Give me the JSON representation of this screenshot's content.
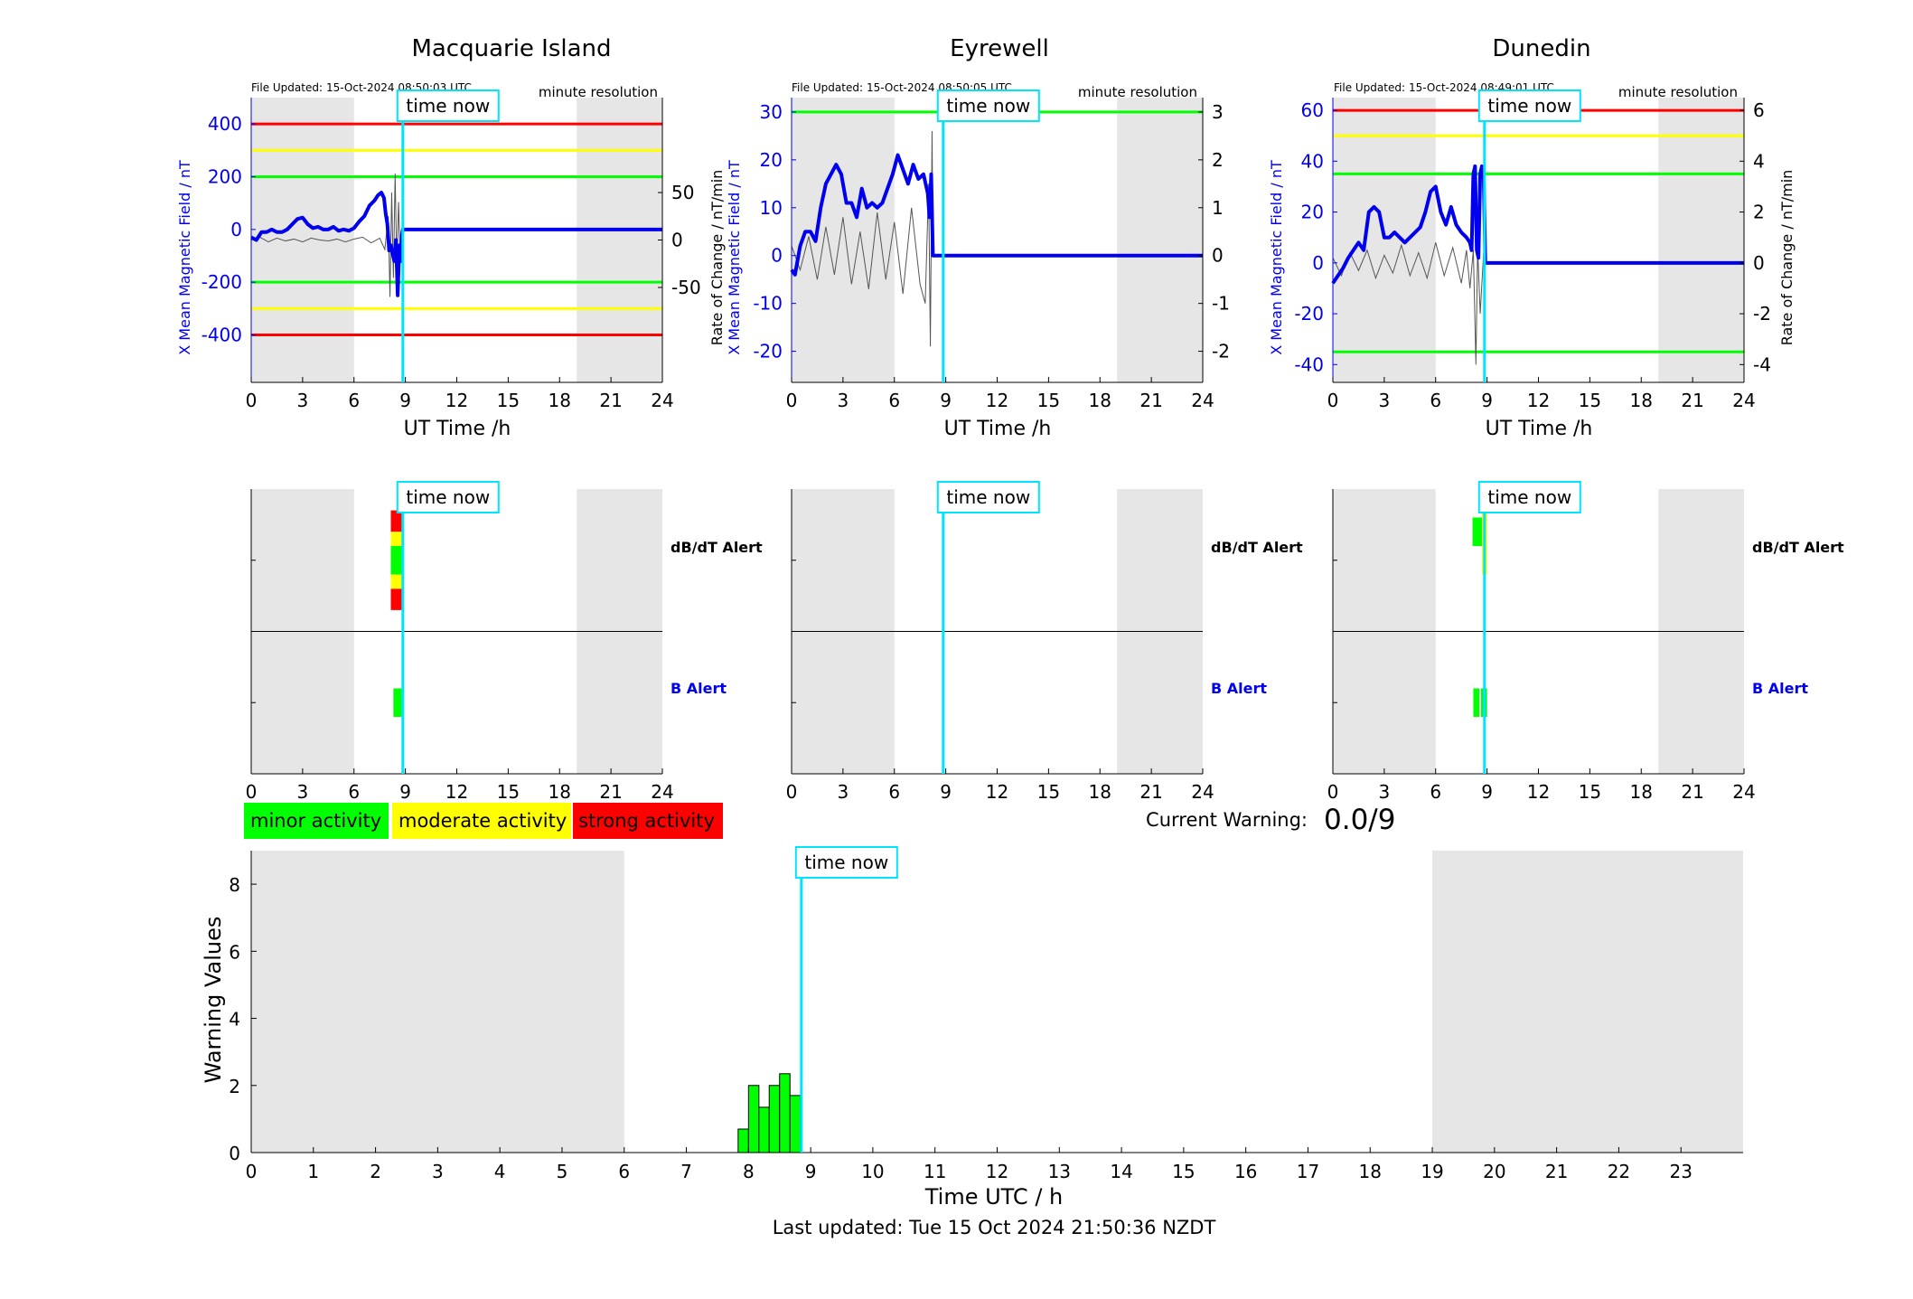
{
  "colors": {
    "blue": "#0000ee",
    "red": "#ff0000",
    "yellow": "#ffff00",
    "green": "#00ff00",
    "cyan": "#00e5ff",
    "shade": "#e6e6e6"
  },
  "common": {
    "time_now_label": "time now",
    "time_now_h": 8.85,
    "file_updated_prefix": "File Updated:",
    "resolution": "minute resolution",
    "ut_xlabel": "UT Time /h",
    "x_ticks": [
      0,
      3,
      6,
      9,
      12,
      15,
      18,
      21,
      24
    ],
    "night_shading": [
      [
        0,
        6
      ],
      [
        19,
        24
      ]
    ]
  },
  "chart_data": [
    {
      "type": "line",
      "station": "Macquarie Island",
      "file_updated": "15-Oct-2024 08:50:03 UTC",
      "ylabel_left": "X Mean Magnetic Field / nT",
      "ylabel_right": "",
      "xlim": [
        0,
        24
      ],
      "ylim_left": [
        -580,
        500
      ],
      "yticks_left": [
        400,
        200,
        0,
        -200,
        -400
      ],
      "ylim_right": [
        -150,
        150
      ],
      "yticks_right": [
        50,
        0,
        -50
      ],
      "thresholds": [
        {
          "value": 400,
          "color": "red"
        },
        {
          "value": -400,
          "color": "red"
        },
        {
          "value": 300,
          "color": "yellow"
        },
        {
          "value": -300,
          "color": "yellow"
        },
        {
          "value": 200,
          "color": "green"
        },
        {
          "value": -200,
          "color": "green"
        }
      ],
      "series": [
        {
          "role": "x_mean",
          "x": [
            0,
            0.3,
            0.6,
            0.9,
            1.2,
            1.5,
            1.8,
            2.1,
            2.4,
            2.7,
            3.0,
            3.3,
            3.6,
            3.9,
            4.2,
            4.5,
            4.8,
            5.1,
            5.4,
            5.7,
            6.0,
            6.3,
            6.6,
            6.9,
            7.2,
            7.4,
            7.6,
            7.75,
            7.85,
            7.95,
            8.05,
            8.15,
            8.25,
            8.35,
            8.45,
            8.55,
            8.65,
            8.75,
            8.8,
            8.85,
            24
          ],
          "y": [
            -30,
            -40,
            -10,
            -10,
            0,
            -10,
            -10,
            0,
            20,
            40,
            45,
            20,
            5,
            10,
            0,
            0,
            10,
            -5,
            0,
            -5,
            5,
            30,
            50,
            90,
            110,
            130,
            140,
            120,
            60,
            20,
            -80,
            -60,
            -90,
            -120,
            -40,
            -250,
            -60,
            -120,
            -20,
            0,
            0
          ]
        },
        {
          "role": "rate_of_change",
          "x": [
            0,
            0.5,
            1,
            1.5,
            2,
            2.5,
            3,
            3.5,
            4,
            4.5,
            5,
            5.5,
            6,
            6.5,
            7,
            7.5,
            7.8,
            8.0,
            8.1,
            8.2,
            8.3,
            8.4,
            8.5,
            8.6,
            8.7,
            8.8
          ],
          "y": [
            0,
            3,
            -2,
            2,
            -1,
            1,
            -2,
            2,
            0,
            -1,
            1,
            -2,
            1,
            3,
            -3,
            2,
            -10,
            25,
            -60,
            50,
            -40,
            70,
            -30,
            40,
            -20,
            5
          ]
        }
      ],
      "panel2": {
        "labels": [
          "dB/dT Alert",
          "B Alert"
        ],
        "dbdt_bars": [
          {
            "x0": 8.15,
            "x1": 8.85,
            "y0": 0.3,
            "y1": 0.6,
            "color": "red"
          },
          {
            "x0": 8.15,
            "x1": 8.85,
            "y0": 0.6,
            "y1": 0.8,
            "color": "yellow"
          },
          {
            "x0": 8.15,
            "x1": 8.85,
            "y0": 0.8,
            "y1": 1.2,
            "color": "green"
          },
          {
            "x0": 8.15,
            "x1": 8.85,
            "y0": 1.2,
            "y1": 1.4,
            "color": "yellow"
          },
          {
            "x0": 8.15,
            "x1": 8.85,
            "y0": 1.4,
            "y1": 1.7,
            "color": "red"
          }
        ],
        "b_bars": [
          {
            "x0": 8.3,
            "x1": 8.8,
            "y0": 0.8,
            "y1": 1.2,
            "color": "green"
          }
        ]
      }
    },
    {
      "type": "line",
      "station": "Eyrewell",
      "file_updated": "15-Oct-2024 08:50:05 UTC",
      "ylabel_left": "X Mean Magnetic Field / nT",
      "ylabel_right": "Rate of Change / nT/min",
      "xlim": [
        0,
        24
      ],
      "ylim_left": [
        -26.5,
        33
      ],
      "yticks_left": [
        30,
        20,
        10,
        0,
        -10,
        -20
      ],
      "ylim_right": [
        -2.65,
        3.3
      ],
      "yticks_right": [
        3,
        2,
        1,
        0,
        -1,
        -2
      ],
      "thresholds": [
        {
          "value": 30,
          "color": "green"
        }
      ],
      "series": [
        {
          "role": "x_mean",
          "x": [
            0,
            0.2,
            0.5,
            0.8,
            1.1,
            1.4,
            1.7,
            2.0,
            2.3,
            2.6,
            2.9,
            3.2,
            3.5,
            3.8,
            4.1,
            4.4,
            4.7,
            5.0,
            5.3,
            5.6,
            5.9,
            6.2,
            6.5,
            6.8,
            7.1,
            7.4,
            7.7,
            7.95,
            8.05,
            8.15,
            8.25,
            24
          ],
          "y": [
            -3,
            -4,
            2,
            5,
            5,
            3,
            10,
            15,
            17,
            19,
            17,
            11,
            11,
            8,
            14,
            10,
            11,
            10,
            11,
            14,
            17,
            21,
            18,
            15,
            19,
            16,
            17,
            13,
            8,
            17,
            0,
            0
          ]
        },
        {
          "role": "rate_of_change",
          "x": [
            0,
            0.5,
            1,
            1.5,
            2,
            2.5,
            3,
            3.5,
            4,
            4.5,
            5,
            5.5,
            6,
            6.5,
            7,
            7.5,
            7.8,
            8.0,
            8.1,
            8.2,
            8.25
          ],
          "y": [
            0.2,
            -0.3,
            0.4,
            -0.5,
            0.6,
            -0.4,
            0.8,
            -0.6,
            0.5,
            -0.7,
            0.9,
            -0.5,
            0.7,
            -0.8,
            1.0,
            -0.6,
            -1.0,
            1.5,
            -1.9,
            2.6,
            0
          ]
        }
      ],
      "panel2": {
        "labels": [
          "dB/dT Alert",
          "B Alert"
        ],
        "dbdt_bars": [],
        "b_bars": []
      }
    },
    {
      "type": "line",
      "station": "Dunedin",
      "file_updated": "15-Oct-2024 08:49:01 UTC",
      "ylabel_left": "X Mean Magnetic Field / nT",
      "ylabel_right": "Rate of Change / nT/min",
      "xlim": [
        0,
        24
      ],
      "ylim_left": [
        -47,
        65
      ],
      "yticks_left": [
        60,
        40,
        20,
        0,
        -20,
        -40
      ],
      "ylim_right": [
        -4.7,
        6.5
      ],
      "yticks_right": [
        6,
        4,
        2,
        0,
        -2,
        -4
      ],
      "thresholds": [
        {
          "value": 60,
          "color": "red"
        },
        {
          "value": 50,
          "color": "yellow"
        },
        {
          "value": 35,
          "color": "green"
        },
        {
          "value": -35,
          "color": "green"
        }
      ],
      "series": [
        {
          "role": "x_mean",
          "x": [
            0,
            0.3,
            0.6,
            0.9,
            1.2,
            1.5,
            1.8,
            2.1,
            2.4,
            2.7,
            3.0,
            3.3,
            3.6,
            3.9,
            4.2,
            4.5,
            4.8,
            5.1,
            5.4,
            5.7,
            6.0,
            6.3,
            6.6,
            6.9,
            7.2,
            7.5,
            7.8,
            8.0,
            8.1,
            8.2,
            8.3,
            8.4,
            8.5,
            8.6,
            8.7,
            8.8,
            8.9,
            24
          ],
          "y": [
            -8,
            -5,
            -2,
            2,
            5,
            8,
            5,
            20,
            22,
            20,
            10,
            10,
            12,
            10,
            8,
            10,
            12,
            14,
            20,
            28,
            30,
            20,
            15,
            22,
            15,
            12,
            10,
            8,
            5,
            35,
            38,
            5,
            2,
            35,
            38,
            36,
            0,
            0
          ]
        },
        {
          "role": "rate_of_change",
          "x": [
            0,
            0.5,
            1,
            1.5,
            2,
            2.5,
            3,
            3.5,
            4,
            4.5,
            5,
            5.5,
            6,
            6.5,
            7,
            7.5,
            7.8,
            8.0,
            8.2,
            8.35,
            8.45,
            8.6,
            8.8
          ],
          "y": [
            0.2,
            -0.5,
            0.4,
            -0.3,
            0.5,
            -0.6,
            0.3,
            -0.4,
            0.7,
            -0.5,
            0.4,
            -0.6,
            0.8,
            -0.5,
            0.6,
            -0.8,
            0.5,
            -1.0,
            0.5,
            -4.0,
            0.6,
            -2.0,
            0.4
          ]
        }
      ],
      "panel2": {
        "labels": [
          "dB/dT Alert",
          "B Alert"
        ],
        "dbdt_bars": [
          {
            "x0": 8.15,
            "x1": 8.9,
            "y0": 1.2,
            "y1": 1.6,
            "color": "green"
          },
          {
            "x0": 8.7,
            "x1": 9.0,
            "y0": 0.8,
            "y1": 1.7,
            "color": "yellow"
          }
        ],
        "b_bars": [
          {
            "x0": 8.2,
            "x1": 8.55,
            "y0": 0.8,
            "y1": 1.2,
            "color": "green"
          },
          {
            "x0": 8.65,
            "x1": 9.0,
            "y0": 0.8,
            "y1": 1.2,
            "color": "green"
          }
        ]
      }
    },
    {
      "type": "bar",
      "title": "",
      "xlabel": "Time UTC / h",
      "ylabel": "Warning Values",
      "xlim": [
        0,
        24
      ],
      "ylim": [
        0,
        9
      ],
      "x_ticks": [
        0,
        1,
        2,
        3,
        4,
        5,
        6,
        7,
        8,
        9,
        10,
        11,
        12,
        13,
        14,
        15,
        16,
        17,
        18,
        19,
        20,
        21,
        22,
        23
      ],
      "y_ticks": [
        0,
        2,
        4,
        6,
        8
      ],
      "night_shading": [
        [
          0,
          6
        ],
        [
          19,
          24
        ]
      ],
      "bar_width_h": 0.167,
      "x": [
        7.833,
        8.0,
        8.167,
        8.333,
        8.5,
        8.667
      ],
      "values": [
        0.7,
        2.0,
        1.35,
        2.0,
        2.35,
        1.7
      ],
      "color": "green"
    }
  ],
  "legend": {
    "minor": "minor activity",
    "moderate": "moderate activity",
    "strong": "strong activity"
  },
  "warning": {
    "label": "Current Warning:",
    "value": "0.0/9"
  },
  "footer": {
    "last_updated": "Last updated: Tue 15 Oct 2024 21:50:36 NZDT"
  }
}
